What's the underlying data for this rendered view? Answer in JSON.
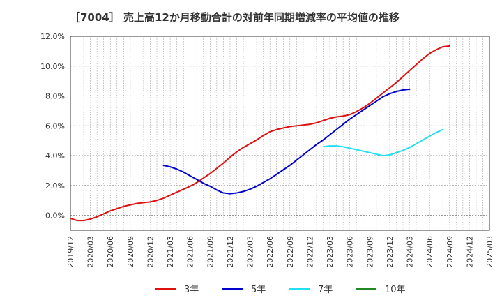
{
  "chart_data": {
    "type": "line",
    "title": "［7004］ 売上高12か月移動合計の対前年同期増減率の平均値の推移",
    "xlabel": "",
    "ylabel": "",
    "ylim": [
      -1.0,
      12.0
    ],
    "yticks": [
      0.0,
      2.0,
      4.0,
      6.0,
      8.0,
      10.0,
      12.0
    ],
    "ytick_labels": [
      "0.0%",
      "2.0%",
      "4.0%",
      "6.0%",
      "8.0%",
      "10.0%",
      "12.0%"
    ],
    "x_start": "2019-12",
    "x_end": "2025-03",
    "xtick_labels": [
      "2019/12",
      "2020/03",
      "2020/06",
      "2020/09",
      "2020/12",
      "2021/03",
      "2021/06",
      "2021/09",
      "2021/12",
      "2022/03",
      "2022/06",
      "2022/09",
      "2022/12",
      "2023/03",
      "2023/06",
      "2023/09",
      "2023/12",
      "2024/03",
      "2024/06",
      "2024/09",
      "2024/12",
      "2025/03"
    ],
    "grid": true,
    "legend_position": "bottom",
    "series": [
      {
        "name": "3年",
        "color": "#dd1111",
        "start": "2019-12",
        "values": [
          -0.2,
          -0.35,
          -0.35,
          -0.25,
          -0.1,
          0.1,
          0.3,
          0.45,
          0.6,
          0.7,
          0.8,
          0.85,
          0.9,
          1.0,
          1.15,
          1.35,
          1.55,
          1.75,
          1.95,
          2.2,
          2.5,
          2.8,
          3.15,
          3.5,
          3.9,
          4.25,
          4.55,
          4.8,
          5.05,
          5.35,
          5.6,
          5.75,
          5.85,
          5.95,
          6.0,
          6.05,
          6.1,
          6.2,
          6.35,
          6.5,
          6.6,
          6.65,
          6.75,
          6.95,
          7.2,
          7.5,
          7.85,
          8.2,
          8.55,
          8.9,
          9.3,
          9.7,
          10.1,
          10.5,
          10.85,
          11.1,
          11.3,
          11.35
        ]
      },
      {
        "name": "5年",
        "color": "#0000cc",
        "start": "2021-02",
        "values": [
          3.35,
          3.25,
          3.1,
          2.9,
          2.65,
          2.4,
          2.15,
          1.95,
          1.7,
          1.5,
          1.45,
          1.5,
          1.6,
          1.75,
          1.95,
          2.2,
          2.45,
          2.75,
          3.05,
          3.35,
          3.7,
          4.05,
          4.4,
          4.75,
          5.05,
          5.4,
          5.75,
          6.1,
          6.45,
          6.75,
          7.05,
          7.35,
          7.65,
          7.95,
          8.15,
          8.3,
          8.4,
          8.45
        ]
      },
      {
        "name": "7年",
        "color": "#22e0ee",
        "start": "2023-02",
        "values": [
          4.6,
          4.65,
          4.65,
          4.6,
          4.5,
          4.4,
          4.3,
          4.2,
          4.1,
          4.0,
          4.05,
          4.2,
          4.35,
          4.55,
          4.8,
          5.05,
          5.3,
          5.55,
          5.75
        ]
      },
      {
        "name": "10年",
        "color": "#228822",
        "start": "2019-12",
        "values": []
      }
    ]
  }
}
